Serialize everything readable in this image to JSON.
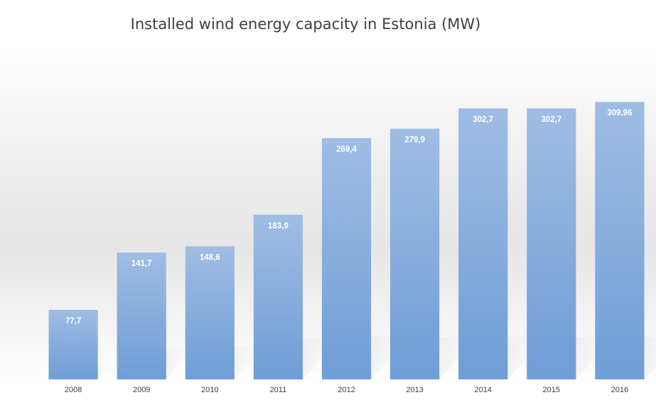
{
  "chart_data": {
    "type": "bar",
    "title": "Installed wind energy capacity in Estonia (MW)",
    "xlabel": "",
    "ylabel": "",
    "categories": [
      "2008",
      "2009",
      "2010",
      "2011",
      "2012",
      "2013",
      "2014",
      "2015",
      "2016"
    ],
    "values": [
      77.7,
      141.7,
      148.6,
      183.9,
      269.4,
      279.9,
      302.7,
      302.7,
      309.96
    ],
    "data_labels": [
      "77,7",
      "141,7",
      "148,6",
      "183,9",
      "269,4",
      "279,9",
      "302,7",
      "302,7",
      "309,96"
    ],
    "ylim": [
      0,
      400
    ],
    "grid": false,
    "legend": "none",
    "colors": {
      "bar_top": "#9fbde4",
      "bar_bottom": "#6f9dd6",
      "label": "#ffffff",
      "tick": "#404040"
    }
  }
}
